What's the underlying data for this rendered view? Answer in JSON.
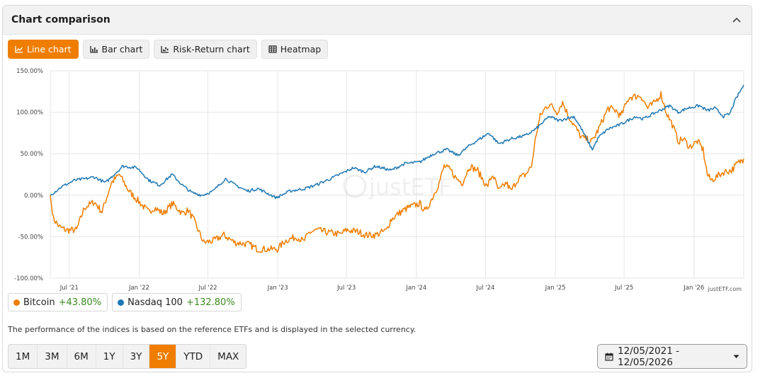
{
  "header": {
    "title": "Chart comparison",
    "collapse_icon": "chevron-up-icon"
  },
  "tabs": [
    {
      "label": "Line chart",
      "icon": "line-chart-icon",
      "active": true
    },
    {
      "label": "Bar chart",
      "icon": "bar-chart-icon",
      "active": false
    },
    {
      "label": "Risk-Return chart",
      "icon": "scatter-chart-icon",
      "active": false
    },
    {
      "label": "Heatmap",
      "icon": "heatmap-icon",
      "active": false
    }
  ],
  "watermark": "justETF",
  "credit": "justETF.com",
  "legend": [
    {
      "name": "Bitcoin",
      "performance": "+43.80%",
      "color": "#ef7d00"
    },
    {
      "name": "Nasdaq 100",
      "performance": "+132.80%",
      "color": "#1f78b4"
    }
  ],
  "note": "The performance of the indices is based on the reference ETFs and is displayed in the selected currency.",
  "periods": [
    {
      "label": "1M",
      "active": false
    },
    {
      "label": "3M",
      "active": false
    },
    {
      "label": "6M",
      "active": false
    },
    {
      "label": "1Y",
      "active": false
    },
    {
      "label": "3Y",
      "active": false
    },
    {
      "label": "5Y",
      "active": true
    },
    {
      "label": "YTD",
      "active": false
    },
    {
      "label": "MAX",
      "active": false
    }
  ],
  "date_range": {
    "label": "12/05/2021 - 12/05/2026",
    "icon": "calendar-icon",
    "dropdown_icon": "caret-down-icon"
  },
  "chart_data": {
    "type": "line",
    "title": "",
    "xlabel": "",
    "ylabel": "",
    "ylim": [
      -100,
      150
    ],
    "y_ticks": [
      "150.00%",
      "100.00%",
      "50.00%",
      "0.00%",
      "-50.00%",
      "-100.00%"
    ],
    "y_tick_values": [
      150,
      100,
      50,
      0,
      -50,
      -100
    ],
    "x_range": [
      "2021-05-12",
      "2026-05-12"
    ],
    "x_ticks": [
      {
        "label": "Jul '21",
        "date": "2021-07-01"
      },
      {
        "label": "Jan '22",
        "date": "2022-01-01"
      },
      {
        "label": "Jul '22",
        "date": "2022-07-01"
      },
      {
        "label": "Jan '23",
        "date": "2023-01-01"
      },
      {
        "label": "Jul '23",
        "date": "2023-07-01"
      },
      {
        "label": "Jan '24",
        "date": "2024-01-01"
      },
      {
        "label": "Jul '24",
        "date": "2024-07-01"
      },
      {
        "label": "Jan '25",
        "date": "2025-01-01"
      },
      {
        "label": "Jul '25",
        "date": "2025-07-01"
      },
      {
        "label": "Jan '26",
        "date": "2026-01-01"
      }
    ],
    "grid": true,
    "series": [
      {
        "name": "Bitcoin",
        "color": "#ef7d00",
        "points": [
          [
            "2021-05-12",
            0
          ],
          [
            "2021-05-20",
            -28
          ],
          [
            "2021-06-05",
            -38
          ],
          [
            "2021-06-22",
            -42
          ],
          [
            "2021-07-20",
            -42
          ],
          [
            "2021-08-10",
            -15
          ],
          [
            "2021-09-05",
            -8
          ],
          [
            "2021-09-25",
            -20
          ],
          [
            "2021-10-20",
            15
          ],
          [
            "2021-11-10",
            25
          ],
          [
            "2021-12-05",
            5
          ],
          [
            "2022-01-05",
            -10
          ],
          [
            "2022-01-25",
            -20
          ],
          [
            "2022-02-10",
            -15
          ],
          [
            "2022-03-05",
            -22
          ],
          [
            "2022-03-30",
            -10
          ],
          [
            "2022-04-25",
            -22
          ],
          [
            "2022-05-10",
            -18
          ],
          [
            "2022-05-25",
            -30
          ],
          [
            "2022-06-13",
            -50
          ],
          [
            "2022-06-20",
            -57
          ],
          [
            "2022-07-15",
            -55
          ],
          [
            "2022-08-12",
            -48
          ],
          [
            "2022-09-10",
            -57
          ],
          [
            "2022-10-15",
            -59
          ],
          [
            "2022-11-09",
            -65
          ],
          [
            "2022-12-01",
            -65
          ],
          [
            "2022-12-31",
            -65
          ],
          [
            "2023-01-20",
            -55
          ],
          [
            "2023-02-20",
            -50
          ],
          [
            "2023-03-10",
            -56
          ],
          [
            "2023-03-25",
            -45
          ],
          [
            "2023-04-14",
            -42
          ],
          [
            "2023-05-15",
            -45
          ],
          [
            "2023-06-15",
            -47
          ],
          [
            "2023-07-01",
            -42
          ],
          [
            "2023-08-01",
            -44
          ],
          [
            "2023-08-20",
            -48
          ],
          [
            "2023-09-15",
            -48
          ],
          [
            "2023-10-15",
            -42
          ],
          [
            "2023-10-25",
            -30
          ],
          [
            "2023-11-15",
            -22
          ],
          [
            "2023-12-10",
            -15
          ],
          [
            "2024-01-10",
            -10
          ],
          [
            "2024-01-25",
            -20
          ],
          [
            "2024-02-15",
            0
          ],
          [
            "2024-03-01",
            15
          ],
          [
            "2024-03-14",
            35
          ],
          [
            "2024-04-01",
            30
          ],
          [
            "2024-04-15",
            20
          ],
          [
            "2024-05-01",
            15
          ],
          [
            "2024-05-20",
            35
          ],
          [
            "2024-06-10",
            30
          ],
          [
            "2024-07-05",
            10
          ],
          [
            "2024-07-20",
            25
          ],
          [
            "2024-08-05",
            5
          ],
          [
            "2024-08-25",
            15
          ],
          [
            "2024-09-06",
            5
          ],
          [
            "2024-09-25",
            20
          ],
          [
            "2024-10-15",
            25
          ],
          [
            "2024-10-30",
            35
          ],
          [
            "2024-11-12",
            75
          ],
          [
            "2024-11-22",
            95
          ],
          [
            "2024-12-05",
            105
          ],
          [
            "2024-12-17",
            110
          ],
          [
            "2025-01-05",
            100
          ],
          [
            "2025-01-20",
            112
          ],
          [
            "2025-02-05",
            95
          ],
          [
            "2025-02-25",
            80
          ],
          [
            "2025-03-10",
            70
          ],
          [
            "2025-04-08",
            65
          ],
          [
            "2025-04-25",
            80
          ],
          [
            "2025-05-20",
            105
          ],
          [
            "2025-06-10",
            102
          ],
          [
            "2025-06-22",
            95
          ],
          [
            "2025-07-14",
            118
          ],
          [
            "2025-08-14",
            120
          ],
          [
            "2025-09-01",
            105
          ],
          [
            "2025-09-20",
            112
          ],
          [
            "2025-10-06",
            122
          ],
          [
            "2025-10-20",
            100
          ],
          [
            "2025-11-05",
            85
          ],
          [
            "2025-11-21",
            65
          ],
          [
            "2025-12-05",
            68
          ],
          [
            "2025-12-20",
            58
          ],
          [
            "2026-01-10",
            65
          ],
          [
            "2026-01-25",
            55
          ],
          [
            "2026-02-05",
            25
          ],
          [
            "2026-02-15",
            18
          ],
          [
            "2026-03-01",
            22
          ],
          [
            "2026-03-20",
            28
          ],
          [
            "2026-04-10",
            30
          ],
          [
            "2026-04-25",
            38
          ],
          [
            "2026-05-12",
            44
          ]
        ]
      },
      {
        "name": "Nasdaq 100",
        "color": "#1f78b4",
        "points": [
          [
            "2021-05-12",
            0
          ],
          [
            "2021-06-10",
            10
          ],
          [
            "2021-07-15",
            18
          ],
          [
            "2021-08-15",
            20
          ],
          [
            "2021-09-05",
            22
          ],
          [
            "2021-10-04",
            15
          ],
          [
            "2021-11-19",
            35
          ],
          [
            "2021-12-27",
            33
          ],
          [
            "2022-01-27",
            18
          ],
          [
            "2022-02-24",
            12
          ],
          [
            "2022-03-29",
            25
          ],
          [
            "2022-04-25",
            12
          ],
          [
            "2022-05-20",
            3
          ],
          [
            "2022-06-16",
            0
          ],
          [
            "2022-07-15",
            5
          ],
          [
            "2022-08-16",
            20
          ],
          [
            "2022-09-12",
            12
          ],
          [
            "2022-10-13",
            5
          ],
          [
            "2022-11-10",
            8
          ],
          [
            "2022-12-28",
            -3
          ],
          [
            "2023-02-02",
            5
          ],
          [
            "2023-03-13",
            8
          ],
          [
            "2023-04-15",
            13
          ],
          [
            "2023-05-30",
            22
          ],
          [
            "2023-07-19",
            33
          ],
          [
            "2023-08-18",
            28
          ],
          [
            "2023-09-15",
            35
          ],
          [
            "2023-10-26",
            30
          ],
          [
            "2023-12-01",
            38
          ],
          [
            "2024-01-10",
            40
          ],
          [
            "2024-02-15",
            50
          ],
          [
            "2024-03-21",
            55
          ],
          [
            "2024-04-19",
            48
          ],
          [
            "2024-05-20",
            60
          ],
          [
            "2024-07-10",
            75
          ],
          [
            "2024-08-05",
            62
          ],
          [
            "2024-09-06",
            68
          ],
          [
            "2024-10-15",
            72
          ],
          [
            "2024-11-11",
            80
          ],
          [
            "2024-12-16",
            95
          ],
          [
            "2025-01-10",
            90
          ],
          [
            "2025-02-19",
            95
          ],
          [
            "2025-03-13",
            78
          ],
          [
            "2025-04-08",
            55
          ],
          [
            "2025-04-25",
            70
          ],
          [
            "2025-05-20",
            80
          ],
          [
            "2025-06-20",
            85
          ],
          [
            "2025-07-31",
            95
          ],
          [
            "2025-08-20",
            92
          ],
          [
            "2025-09-15",
            98
          ],
          [
            "2025-10-29",
            108
          ],
          [
            "2025-11-20",
            100
          ],
          [
            "2025-12-15",
            105
          ],
          [
            "2026-01-15",
            108
          ],
          [
            "2026-02-05",
            102
          ],
          [
            "2026-02-25",
            105
          ],
          [
            "2026-03-20",
            95
          ],
          [
            "2026-04-05",
            98
          ],
          [
            "2026-04-20",
            115
          ],
          [
            "2026-05-12",
            133
          ]
        ]
      }
    ]
  }
}
